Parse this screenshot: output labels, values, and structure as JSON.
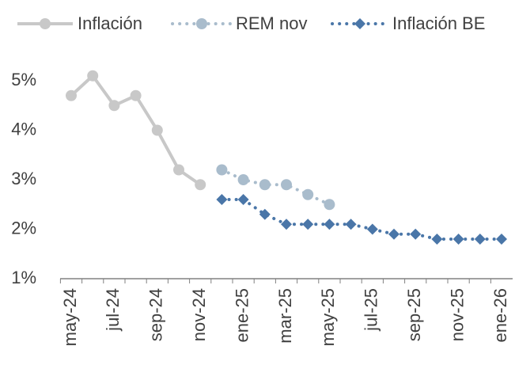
{
  "chart_data": {
    "type": "line",
    "categories": [
      "may-24",
      null,
      "jul-24",
      null,
      "sep-24",
      null,
      "nov-24",
      null,
      "ene-25",
      null,
      "mar-25",
      null,
      "may-25",
      null,
      "jul-25",
      null,
      "sep-25",
      null,
      "nov-25",
      null,
      "ene-26"
    ],
    "series": [
      {
        "name": "Inflación",
        "color": "#c8c8c8",
        "style": "solid",
        "marker": "circle",
        "values": [
          4.7,
          5.1,
          4.5,
          4.7,
          4.0,
          3.2,
          2.9,
          null,
          null,
          null,
          null,
          null,
          null,
          null,
          null,
          null,
          null,
          null,
          null,
          null,
          null
        ]
      },
      {
        "name": "REM nov",
        "color": "#a9bccc",
        "style": "dotted",
        "marker": "circle",
        "values": [
          null,
          null,
          null,
          null,
          null,
          null,
          null,
          3.2,
          3.0,
          2.9,
          2.9,
          2.7,
          2.5,
          null,
          null,
          null,
          null,
          null,
          null,
          null,
          null
        ]
      },
      {
        "name": "Inflación BE",
        "color": "#4a76a8",
        "style": "dotted",
        "marker": "diamond",
        "values": [
          null,
          null,
          null,
          null,
          null,
          null,
          null,
          2.6,
          2.6,
          2.3,
          2.1,
          2.1,
          2.1,
          2.1,
          2.0,
          1.9,
          1.9,
          1.8,
          1.8,
          1.8,
          1.8
        ]
      }
    ],
    "ylim": [
      1,
      5.5
    ],
    "yticks": [
      {
        "value": 1,
        "label": "1%"
      },
      {
        "value": 2,
        "label": "2%"
      },
      {
        "value": 3,
        "label": "3%"
      },
      {
        "value": 4,
        "label": "4%"
      },
      {
        "value": 5,
        "label": "5%"
      }
    ],
    "grid": false,
    "legend": "top"
  }
}
